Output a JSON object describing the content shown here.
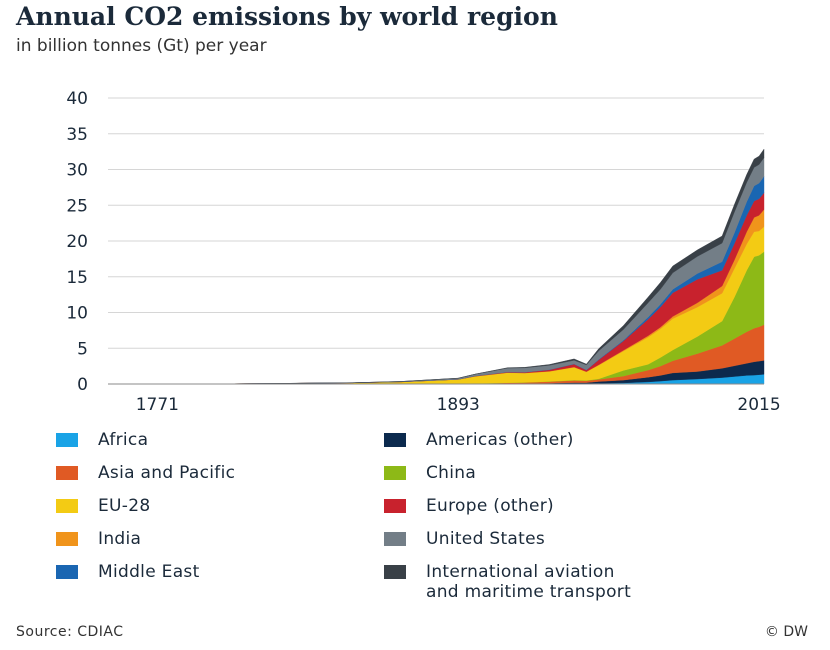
{
  "header": {
    "title": "Annual CO2 emissions by world region",
    "subtitle": "in billion tonnes (Gt) per year"
  },
  "footer": {
    "source": "Source: CDIAC",
    "credit": "© DW"
  },
  "chart_data": {
    "type": "area",
    "title": "Annual CO2 emissions by world region",
    "subtitle": "in billion tonnes (Gt) per year",
    "xlabel": "",
    "ylabel": "",
    "xlim": [
      1751,
      2017
    ],
    "ylim": [
      0,
      40
    ],
    "x_ticks": [
      "1771",
      "1893",
      "2015"
    ],
    "y_ticks": [
      "0",
      "5",
      "10",
      "15",
      "20",
      "25",
      "30",
      "35",
      "40"
    ],
    "grid": true,
    "legend_position": "bottom",
    "x": [
      1751,
      1800,
      1850,
      1870,
      1893,
      1900,
      1913,
      1920,
      1930,
      1940,
      1945,
      1950,
      1960,
      1970,
      1975,
      1980,
      1990,
      2000,
      2005,
      2010,
      2013,
      2015,
      2017
    ],
    "series": [
      {
        "name": "Africa",
        "color": "#19a3e6",
        "values": [
          0,
          0,
          0,
          0,
          0,
          0.01,
          0.02,
          0.02,
          0.03,
          0.04,
          0.05,
          0.1,
          0.15,
          0.3,
          0.4,
          0.55,
          0.7,
          0.9,
          1.05,
          1.2,
          1.25,
          1.3,
          1.35
        ]
      },
      {
        "name": "Americas (other)",
        "color": "#0c2a4e",
        "values": [
          0,
          0,
          0,
          0,
          0.01,
          0.02,
          0.05,
          0.07,
          0.1,
          0.15,
          0.15,
          0.25,
          0.4,
          0.65,
          0.8,
          1.0,
          1.05,
          1.3,
          1.5,
          1.7,
          1.85,
          1.9,
          1.95
        ]
      },
      {
        "name": "Asia and Pacific",
        "color": "#e05a24",
        "values": [
          0,
          0,
          0,
          0,
          0.03,
          0.05,
          0.1,
          0.12,
          0.2,
          0.3,
          0.25,
          0.3,
          0.55,
          1.0,
          1.3,
          1.7,
          2.5,
          3.2,
          3.8,
          4.4,
          4.7,
          4.8,
          5.0
        ]
      },
      {
        "name": "China",
        "color": "#8db917",
        "values": [
          0,
          0,
          0,
          0,
          0,
          0,
          0.01,
          0.02,
          0.03,
          0.05,
          0.05,
          0.08,
          0.8,
          0.8,
          1.2,
          1.5,
          2.4,
          3.4,
          5.8,
          8.6,
          10.0,
          10.0,
          10.2
        ]
      },
      {
        "name": "EU-28",
        "color": "#f3cb14",
        "values": [
          0,
          0.03,
          0.17,
          0.3,
          0.6,
          1.0,
          1.4,
          1.3,
          1.4,
          1.8,
          1.2,
          1.9,
          2.7,
          3.8,
          4.0,
          4.4,
          4.1,
          3.9,
          4.0,
          3.7,
          3.5,
          3.4,
          3.5
        ]
      },
      {
        "name": "India",
        "color": "#f0941b",
        "values": [
          0,
          0,
          0,
          0,
          0,
          0.01,
          0.02,
          0.02,
          0.03,
          0.04,
          0.04,
          0.07,
          0.12,
          0.2,
          0.25,
          0.3,
          0.6,
          1.0,
          1.2,
          1.7,
          2.0,
          2.2,
          2.4
        ]
      },
      {
        "name": "Europe (other)",
        "color": "#c8222d",
        "values": [
          0,
          0,
          0,
          0.01,
          0.02,
          0.04,
          0.08,
          0.1,
          0.2,
          0.4,
          0.2,
          0.7,
          1.3,
          2.3,
          2.8,
          3.3,
          3.3,
          2.2,
          2.3,
          2.3,
          2.3,
          2.3,
          2.35
        ]
      },
      {
        "name": "Middle East",
        "color": "#1a66b2",
        "values": [
          0,
          0,
          0,
          0,
          0,
          0,
          0,
          0.01,
          0.02,
          0.03,
          0.03,
          0.05,
          0.1,
          0.3,
          0.4,
          0.5,
          0.8,
          1.2,
          1.5,
          1.9,
          2.1,
          2.2,
          2.3
        ]
      },
      {
        "name": "United States",
        "color": "#737e87",
        "values": [
          0,
          0,
          0.01,
          0.05,
          0.15,
          0.25,
          0.55,
          0.6,
          0.6,
          0.5,
          0.7,
          1.2,
          1.5,
          2.0,
          2.1,
          2.3,
          2.4,
          2.6,
          2.9,
          2.7,
          2.6,
          2.6,
          2.6
        ]
      },
      {
        "name": "International aviation and maritime transport",
        "color": "#394047",
        "values": [
          0,
          0,
          0,
          0,
          0.01,
          0.02,
          0.05,
          0.07,
          0.12,
          0.2,
          0.12,
          0.3,
          0.55,
          0.8,
          0.95,
          0.95,
          0.9,
          1.0,
          1.05,
          1.1,
          1.15,
          1.17,
          1.2
        ]
      }
    ]
  },
  "legend": {
    "items": [
      {
        "label": "Africa",
        "color": "#19a3e6"
      },
      {
        "label": "Americas (other)",
        "color": "#0c2a4e"
      },
      {
        "label": "Asia and Pacific",
        "color": "#e05a24"
      },
      {
        "label": "China",
        "color": "#8db917"
      },
      {
        "label": "EU-28",
        "color": "#f3cb14"
      },
      {
        "label": "Europe (other)",
        "color": "#c8222d"
      },
      {
        "label": "India",
        "color": "#f0941b"
      },
      {
        "label": "United States",
        "color": "#737e87"
      },
      {
        "label": "Middle East",
        "color": "#1a66b2"
      },
      {
        "label": "International aviation\nand maritime transport",
        "color": "#394047"
      }
    ]
  }
}
